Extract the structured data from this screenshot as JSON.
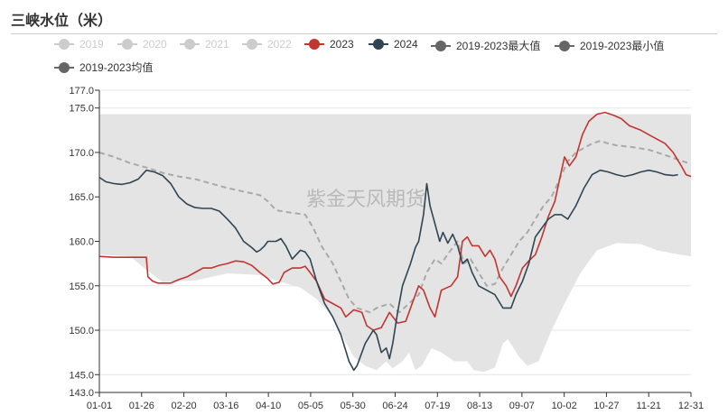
{
  "title": "三峡水位（米）",
  "watermark": "紫金天风期货",
  "legend": [
    {
      "label": "2019",
      "color": "#cccccc",
      "muted": true
    },
    {
      "label": "2020",
      "color": "#cccccc",
      "muted": true
    },
    {
      "label": "2021",
      "color": "#cccccc",
      "muted": true
    },
    {
      "label": "2022",
      "color": "#cccccc",
      "muted": true
    },
    {
      "label": "2023",
      "color": "#c23531",
      "muted": false
    },
    {
      "label": "2024",
      "color": "#2f4554",
      "muted": false
    },
    {
      "label": "2019-2023最大值",
      "color": "#666666",
      "muted": false
    },
    {
      "label": "2019-2023最小值",
      "color": "#666666",
      "muted": false
    },
    {
      "label": "2019-2023均值",
      "color": "#666666",
      "muted": false
    }
  ],
  "chart_data": {
    "type": "line",
    "title": "三峡水位（米）",
    "x_ticks": [
      "01-01",
      "01-26",
      "02-20",
      "03-16",
      "04-10",
      "05-05",
      "05-30",
      "06-24",
      "07-19",
      "08-13",
      "09-07",
      "10-02",
      "10-27",
      "11-21",
      "12-31"
    ],
    "y_ticks": [
      143.0,
      145.0,
      150.0,
      155.0,
      160.0,
      165.0,
      170.0,
      175.0,
      177.0
    ],
    "ylim": [
      143,
      177
    ],
    "x_range": [
      "01-01",
      "12-31"
    ],
    "band": {
      "name_upper": "2019-2023最大值",
      "name_lower": "2019-2023最小值",
      "upper": [
        [
          1,
          174.3
        ],
        [
          366,
          174.3
        ]
      ],
      "lower": [
        [
          1,
          158.5
        ],
        [
          20,
          158.3
        ],
        [
          30,
          156.8
        ],
        [
          40,
          155.4
        ],
        [
          60,
          155.6
        ],
        [
          80,
          156.4
        ],
        [
          100,
          156.2
        ],
        [
          110,
          155.6
        ],
        [
          125,
          154.8
        ],
        [
          135,
          153.5
        ],
        [
          145,
          151.5
        ],
        [
          152,
          149.0
        ],
        [
          158,
          147.0
        ],
        [
          165,
          146.0
        ],
        [
          172,
          145.5
        ],
        [
          178,
          146.5
        ],
        [
          182,
          145.7
        ],
        [
          188,
          146.5
        ],
        [
          192,
          147.5
        ],
        [
          196,
          145.5
        ],
        [
          200,
          146.0
        ],
        [
          206,
          148.0
        ],
        [
          212,
          147.5
        ],
        [
          220,
          146.5
        ],
        [
          228,
          146.5
        ],
        [
          232,
          145.5
        ],
        [
          238,
          145.3
        ],
        [
          245,
          145.8
        ],
        [
          250,
          148.5
        ],
        [
          253,
          149.0
        ],
        [
          260,
          147.0
        ],
        [
          265,
          146.0
        ],
        [
          272,
          146.5
        ],
        [
          280,
          150.0
        ],
        [
          288,
          153.0
        ],
        [
          298,
          156.5
        ],
        [
          308,
          159.0
        ],
        [
          320,
          159.8
        ],
        [
          335,
          159.7
        ],
        [
          345,
          159.0
        ],
        [
          356,
          158.6
        ],
        [
          366,
          158.3
        ]
      ]
    },
    "series": [
      {
        "name": "2019-2023均值",
        "style": "dashed",
        "color": "#a9a9a9",
        "values": [
          [
            1,
            170.0
          ],
          [
            10,
            169.5
          ],
          [
            20,
            168.8
          ],
          [
            30,
            168.3
          ],
          [
            40,
            167.7
          ],
          [
            50,
            167.3
          ],
          [
            60,
            167.0
          ],
          [
            70,
            166.5
          ],
          [
            80,
            166.0
          ],
          [
            90,
            165.6
          ],
          [
            100,
            165.2
          ],
          [
            105,
            164.5
          ],
          [
            110,
            163.5
          ],
          [
            120,
            163.2
          ],
          [
            128,
            163.0
          ],
          [
            133,
            161.5
          ],
          [
            138,
            159.5
          ],
          [
            145,
            157.5
          ],
          [
            150,
            155.5
          ],
          [
            155,
            153.5
          ],
          [
            160,
            152.5
          ],
          [
            168,
            152.0
          ],
          [
            172,
            152.5
          ],
          [
            180,
            153.0
          ],
          [
            186,
            152.0
          ],
          [
            192,
            153.0
          ],
          [
            198,
            154.0
          ],
          [
            203,
            156.5
          ],
          [
            208,
            158.0
          ],
          [
            212,
            157.5
          ],
          [
            217,
            158.8
          ],
          [
            222,
            160.0
          ],
          [
            226,
            157.5
          ],
          [
            230,
            158.0
          ],
          [
            235,
            156.5
          ],
          [
            240,
            155.0
          ],
          [
            245,
            155.2
          ],
          [
            250,
            157.0
          ],
          [
            255,
            158.5
          ],
          [
            260,
            160.0
          ],
          [
            265,
            161.0
          ],
          [
            270,
            162.5
          ],
          [
            275,
            164.0
          ],
          [
            280,
            165.0
          ],
          [
            285,
            167.0
          ],
          [
            290,
            169.0
          ],
          [
            295,
            170.0
          ],
          [
            300,
            170.5
          ],
          [
            305,
            171.0
          ],
          [
            310,
            171.3
          ],
          [
            315,
            171.0
          ],
          [
            320,
            170.8
          ],
          [
            330,
            170.6
          ],
          [
            340,
            170.3
          ],
          [
            350,
            169.7
          ],
          [
            358,
            169.2
          ],
          [
            366,
            168.7
          ]
        ]
      },
      {
        "name": "2023",
        "style": "solid",
        "color": "#c23531",
        "values": [
          [
            1,
            158.3
          ],
          [
            10,
            158.2
          ],
          [
            30,
            158.2
          ],
          [
            31,
            156.0
          ],
          [
            34,
            155.5
          ],
          [
            37,
            155.3
          ],
          [
            45,
            155.3
          ],
          [
            50,
            155.7
          ],
          [
            55,
            156.0
          ],
          [
            60,
            156.5
          ],
          [
            65,
            157.0
          ],
          [
            70,
            157.0
          ],
          [
            75,
            157.3
          ],
          [
            80,
            157.5
          ],
          [
            85,
            157.8
          ],
          [
            90,
            157.7
          ],
          [
            95,
            157.3
          ],
          [
            100,
            156.5
          ],
          [
            105,
            155.8
          ],
          [
            108,
            155.2
          ],
          [
            112,
            155.4
          ],
          [
            115,
            156.5
          ],
          [
            120,
            157.0
          ],
          [
            125,
            157.0
          ],
          [
            128,
            157.2
          ],
          [
            131,
            156.5
          ],
          [
            135,
            155.5
          ],
          [
            140,
            153.5
          ],
          [
            145,
            153.0
          ],
          [
            150,
            152.5
          ],
          [
            153,
            151.5
          ],
          [
            158,
            152.3
          ],
          [
            163,
            152.0
          ],
          [
            166,
            150.5
          ],
          [
            170,
            150.0
          ],
          [
            175,
            150.3
          ],
          [
            180,
            152.0
          ],
          [
            185,
            150.8
          ],
          [
            190,
            151.0
          ],
          [
            194,
            153.0
          ],
          [
            198,
            155.0
          ],
          [
            201,
            154.5
          ],
          [
            205,
            152.5
          ],
          [
            208,
            151.5
          ],
          [
            212,
            154.5
          ],
          [
            218,
            155.0
          ],
          [
            222,
            156.0
          ],
          [
            225,
            160.0
          ],
          [
            228,
            160.5
          ],
          [
            231,
            159.5
          ],
          [
            235,
            159.5
          ],
          [
            239,
            158.3
          ],
          [
            242,
            159.0
          ],
          [
            245,
            158.0
          ],
          [
            248,
            156.0
          ],
          [
            252,
            155.0
          ],
          [
            255,
            153.8
          ],
          [
            258,
            155.0
          ],
          [
            262,
            157.0
          ],
          [
            266,
            157.8
          ],
          [
            270,
            158.5
          ],
          [
            274,
            160.5
          ],
          [
            278,
            162.8
          ],
          [
            282,
            164.5
          ],
          [
            285,
            167.0
          ],
          [
            288,
            169.5
          ],
          [
            291,
            168.5
          ],
          [
            295,
            169.5
          ],
          [
            299,
            172.0
          ],
          [
            303,
            173.5
          ],
          [
            308,
            174.3
          ],
          [
            313,
            174.5
          ],
          [
            318,
            174.2
          ],
          [
            323,
            173.8
          ],
          [
            328,
            173.0
          ],
          [
            335,
            172.5
          ],
          [
            340,
            172.0
          ],
          [
            345,
            171.5
          ],
          [
            350,
            171.0
          ],
          [
            355,
            170.0
          ],
          [
            360,
            168.5
          ],
          [
            363,
            167.5
          ],
          [
            366,
            167.3
          ]
        ]
      },
      {
        "name": "2024",
        "style": "solid",
        "color": "#2f4554",
        "values": [
          [
            1,
            167.2
          ],
          [
            5,
            166.7
          ],
          [
            10,
            166.5
          ],
          [
            15,
            166.4
          ],
          [
            20,
            166.6
          ],
          [
            25,
            167.0
          ],
          [
            28,
            167.6
          ],
          [
            30,
            168.0
          ],
          [
            35,
            167.8
          ],
          [
            40,
            167.4
          ],
          [
            45,
            166.5
          ],
          [
            50,
            165.0
          ],
          [
            55,
            164.2
          ],
          [
            60,
            163.8
          ],
          [
            65,
            163.7
          ],
          [
            70,
            163.7
          ],
          [
            75,
            163.4
          ],
          [
            80,
            162.5
          ],
          [
            85,
            161.5
          ],
          [
            90,
            160.0
          ],
          [
            95,
            159.3
          ],
          [
            98,
            158.8
          ],
          [
            100,
            159.0
          ],
          [
            103,
            159.5
          ],
          [
            105,
            160.0
          ],
          [
            110,
            160.0
          ],
          [
            113,
            160.3
          ],
          [
            116,
            159.5
          ],
          [
            120,
            158.0
          ],
          [
            125,
            159.0
          ],
          [
            128,
            158.8
          ],
          [
            131,
            158.0
          ],
          [
            135,
            155.5
          ],
          [
            140,
            153.0
          ],
          [
            145,
            151.5
          ],
          [
            150,
            149.5
          ],
          [
            155,
            146.5
          ],
          [
            158,
            145.5
          ],
          [
            160,
            146.0
          ],
          [
            165,
            148.5
          ],
          [
            170,
            150.0
          ],
          [
            172,
            149.5
          ],
          [
            175,
            147.5
          ],
          [
            178,
            148.0
          ],
          [
            180,
            146.8
          ],
          [
            182,
            148.5
          ],
          [
            185,
            152.0
          ],
          [
            188,
            155.0
          ],
          [
            190,
            156.0
          ],
          [
            193,
            157.5
          ],
          [
            196,
            159.3
          ],
          [
            198,
            160.0
          ],
          [
            201,
            163.0
          ],
          [
            203,
            166.5
          ],
          [
            205,
            164.0
          ],
          [
            208,
            162.0
          ],
          [
            211,
            160.0
          ],
          [
            213,
            161.0
          ],
          [
            216,
            159.8
          ],
          [
            219,
            160.8
          ],
          [
            222,
            159.5
          ],
          [
            225,
            157.5
          ],
          [
            228,
            158.0
          ],
          [
            231,
            156.5
          ],
          [
            235,
            155.0
          ],
          [
            240,
            154.5
          ],
          [
            245,
            154.0
          ],
          [
            250,
            152.5
          ],
          [
            255,
            152.5
          ],
          [
            258,
            154.0
          ],
          [
            262,
            155.5
          ],
          [
            266,
            157.5
          ],
          [
            270,
            160.5
          ],
          [
            274,
            161.5
          ],
          [
            278,
            162.5
          ],
          [
            282,
            163.0
          ],
          [
            286,
            163.0
          ],
          [
            290,
            162.5
          ],
          [
            295,
            164.0
          ],
          [
            300,
            166.0
          ],
          [
            305,
            167.5
          ],
          [
            310,
            168.0
          ],
          [
            315,
            167.8
          ],
          [
            320,
            167.5
          ],
          [
            325,
            167.3
          ],
          [
            330,
            167.5
          ],
          [
            335,
            167.8
          ],
          [
            340,
            168.0
          ],
          [
            345,
            167.8
          ],
          [
            350,
            167.5
          ],
          [
            355,
            167.4
          ],
          [
            358,
            167.5
          ]
        ]
      }
    ]
  }
}
